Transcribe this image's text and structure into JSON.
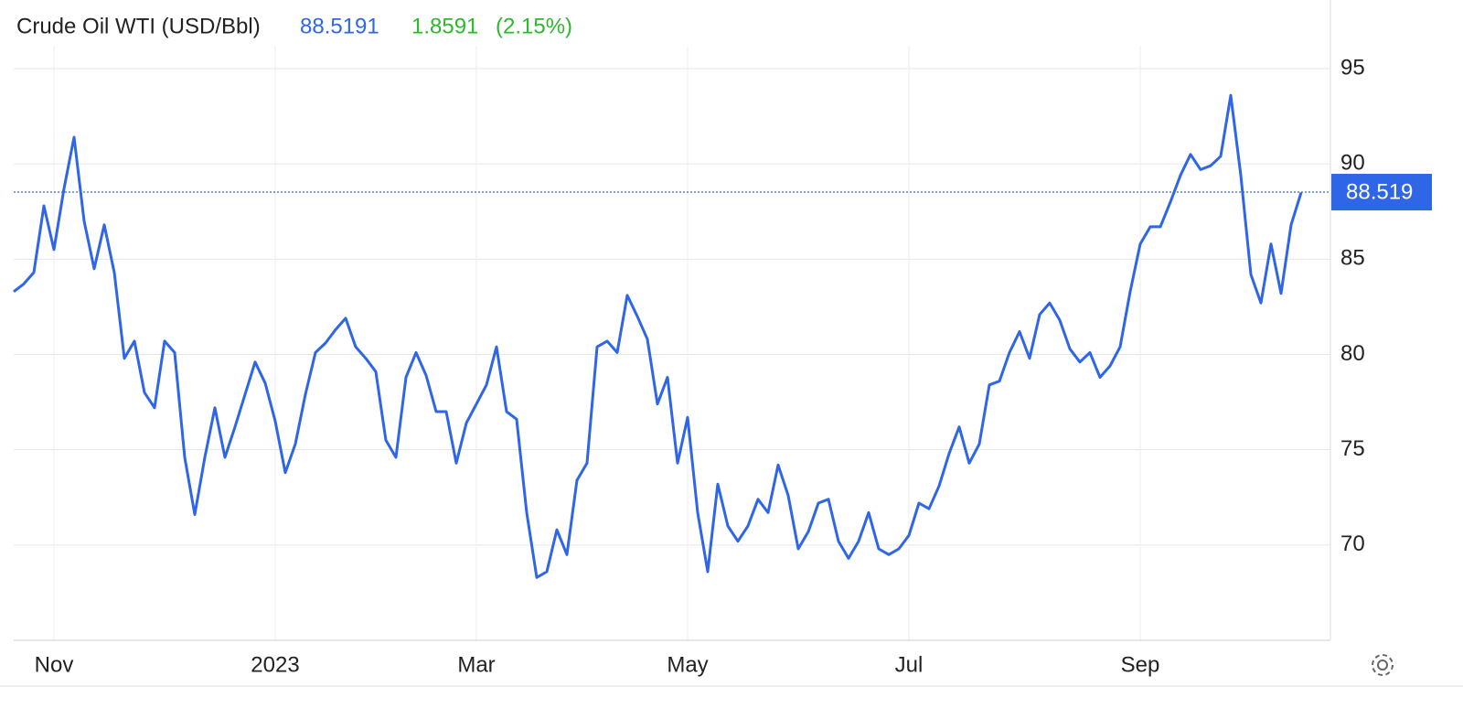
{
  "chart_data": {
    "type": "line",
    "title": "Crude Oil WTI (USD/Bbl)",
    "price": "88.5191",
    "change": "1.8591",
    "change_percent": "(2.15%)",
    "current_price_label": 88.519,
    "categories": [
      null,
      null,
      null,
      null,
      "Nov",
      null,
      null,
      null,
      null,
      null,
      null,
      null,
      null,
      null,
      null,
      null,
      null,
      null,
      null,
      null,
      null,
      null,
      null,
      null,
      null,
      null,
      "2023",
      null,
      null,
      null,
      null,
      null,
      null,
      null,
      null,
      null,
      null,
      null,
      null,
      null,
      null,
      null,
      null,
      null,
      null,
      null,
      "Mar",
      null,
      null,
      null,
      null,
      null,
      null,
      null,
      null,
      null,
      null,
      null,
      null,
      null,
      null,
      null,
      null,
      null,
      null,
      null,
      null,
      "May",
      null,
      null,
      null,
      null,
      null,
      null,
      null,
      null,
      null,
      null,
      null,
      null,
      null,
      null,
      null,
      null,
      null,
      null,
      null,
      null,
      null,
      "Jul",
      null,
      null,
      null,
      null,
      null,
      null,
      null,
      null,
      null,
      null,
      null,
      null,
      null,
      null,
      null,
      null,
      null,
      null,
      null,
      null,
      null,
      null,
      "Sep",
      null,
      null,
      null,
      null,
      null,
      null,
      null,
      null,
      null,
      null,
      null,
      null,
      null,
      null,
      null,
      null
    ],
    "series": [
      {
        "name": "Crude Oil WTI",
        "color": "#2f66e8",
        "values": [
          83.3,
          83.7,
          84.3,
          87.8,
          85.5,
          88.7,
          91.4,
          87.0,
          84.5,
          86.8,
          84.3,
          79.8,
          80.7,
          78.0,
          77.2,
          80.7,
          80.1,
          74.6,
          71.6,
          74.6,
          77.2,
          74.6,
          76.2,
          77.9,
          79.6,
          78.5,
          76.5,
          73.8,
          75.3,
          77.9,
          80.1,
          80.6,
          81.3,
          81.9,
          80.4,
          79.8,
          79.1,
          75.5,
          74.6,
          78.8,
          80.1,
          78.9,
          77.0,
          77.0,
          74.3,
          76.4,
          77.4,
          78.4,
          80.4,
          77.0,
          76.6,
          71.7,
          68.3,
          68.6,
          70.8,
          69.5,
          73.4,
          74.3,
          80.4,
          80.7,
          80.1,
          83.1,
          82.0,
          80.8,
          77.4,
          78.8,
          74.3,
          76.7,
          71.7,
          68.6,
          73.2,
          71.0,
          70.2,
          71.0,
          72.4,
          71.7,
          74.2,
          72.6,
          69.8,
          70.7,
          72.2,
          72.4,
          70.2,
          69.3,
          70.2,
          71.7,
          69.8,
          69.5,
          69.8,
          70.5,
          72.2,
          71.9,
          73.1,
          74.8,
          76.2,
          74.3,
          75.3,
          78.4,
          78.6,
          80.1,
          81.2,
          79.8,
          82.1,
          82.7,
          81.8,
          80.3,
          79.6,
          80.1,
          78.8,
          79.4,
          80.4,
          83.3,
          85.8,
          86.7,
          86.7,
          88.0,
          89.4,
          90.5,
          89.7,
          89.9,
          90.4,
          93.6,
          89.4,
          84.2,
          82.7,
          85.8,
          83.2,
          86.8,
          88.5
        ]
      }
    ],
    "ylim": [
      65,
      96.2
    ],
    "yticks": [
      70,
      75,
      80,
      85,
      90,
      95
    ],
    "grid": true
  }
}
